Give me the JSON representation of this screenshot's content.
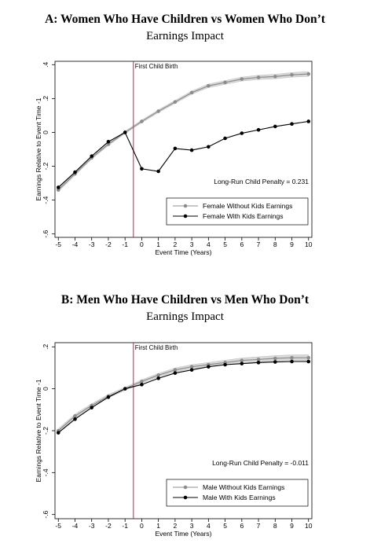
{
  "chart_data": [
    {
      "type": "line",
      "title": "A: Women Who Have Children vs Women Who Don’t",
      "subtitle": "Earnings Impact",
      "xlabel": "Event Time (Years)",
      "ylabel": "Earnings Relative to Event Time -1",
      "xlim": [
        -5.2,
        10.2
      ],
      "ylim": [
        -0.62,
        0.42
      ],
      "xticks": [
        -5,
        -4,
        -3,
        -2,
        -1,
        0,
        1,
        2,
        3,
        4,
        5,
        6,
        7,
        8,
        9,
        10
      ],
      "yticks": [
        0.4,
        0.2,
        0,
        -0.2,
        -0.4,
        -0.6
      ],
      "ytick_labels": [
        ".4",
        ".2",
        "0",
        "-.2",
        "-.4",
        "-.6"
      ],
      "grid": false,
      "vline": {
        "x": -0.5,
        "label": "First Child Birth",
        "color": "#c41e5a"
      },
      "annotation": "Long-Run Child Penalty = 0.231",
      "legend_position": "bottom-right",
      "x": [
        -5,
        -4,
        -3,
        -2,
        -1,
        0,
        1,
        2,
        3,
        4,
        5,
        6,
        7,
        8,
        9,
        10
      ],
      "series": [
        {
          "name": "Female Without Kids Earnings",
          "color": "#8c8c8c",
          "band": true,
          "values": [
            -0.34,
            -0.245,
            -0.15,
            -0.07,
            0,
            0.065,
            0.125,
            0.18,
            0.235,
            0.275,
            0.295,
            0.315,
            0.325,
            0.33,
            0.34,
            0.345
          ]
        },
        {
          "name": "Female With Kids Earnings",
          "color": "#000000",
          "band": false,
          "values": [
            -0.325,
            -0.235,
            -0.14,
            -0.055,
            0,
            -0.215,
            -0.23,
            -0.095,
            -0.105,
            -0.085,
            -0.035,
            -0.005,
            0.015,
            0.035,
            0.05,
            0.065
          ]
        }
      ]
    },
    {
      "type": "line",
      "title": "B: Men Who Have Children vs Men Who Don’t",
      "subtitle": "Earnings Impact",
      "xlabel": "Event Time (Years)",
      "ylabel": "Earnings Relative to Event Time -1",
      "xlim": [
        -5.2,
        10.2
      ],
      "ylim": [
        -0.62,
        0.22
      ],
      "xticks": [
        -5,
        -4,
        -3,
        -2,
        -1,
        0,
        1,
        2,
        3,
        4,
        5,
        6,
        7,
        8,
        9,
        10
      ],
      "yticks": [
        0.2,
        0,
        -0.2,
        -0.4,
        -0.6
      ],
      "ytick_labels": [
        ".2",
        "0",
        "-.2",
        "-.4",
        "-.6"
      ],
      "grid": false,
      "vline": {
        "x": -0.5,
        "label": "First Child Birth",
        "color": "#c41e5a"
      },
      "annotation": "Long-Run Child Penalty = -0.011",
      "legend_position": "bottom-right",
      "x": [
        -5,
        -4,
        -3,
        -2,
        -1,
        0,
        1,
        2,
        3,
        4,
        5,
        6,
        7,
        8,
        9,
        10
      ],
      "series": [
        {
          "name": "Male Without Kids Earnings",
          "color": "#8c8c8c",
          "band": true,
          "values": [
            -0.2,
            -0.13,
            -0.08,
            -0.035,
            0,
            0.035,
            0.065,
            0.09,
            0.105,
            0.115,
            0.125,
            0.135,
            0.14,
            0.145,
            0.148,
            0.148
          ]
        },
        {
          "name": "Male With Kids Earnings",
          "color": "#000000",
          "band": false,
          "values": [
            -0.21,
            -0.145,
            -0.09,
            -0.04,
            0,
            0.02,
            0.05,
            0.075,
            0.09,
            0.105,
            0.115,
            0.12,
            0.125,
            0.128,
            0.13,
            0.13
          ]
        }
      ]
    }
  ]
}
